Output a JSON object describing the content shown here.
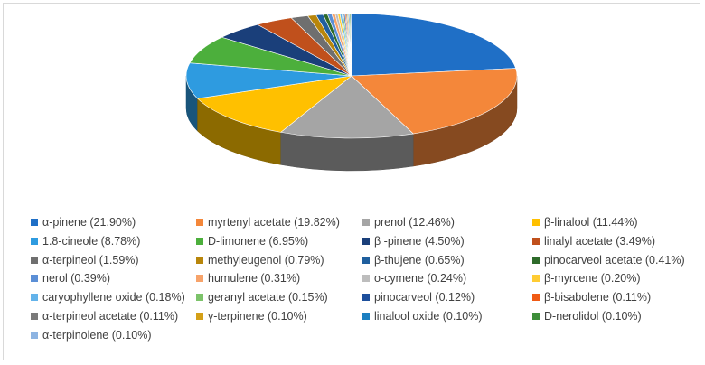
{
  "chart_data": {
    "type": "pie",
    "title": "",
    "legend_position": "bottom",
    "series": [
      {
        "name": "α-pinene",
        "value": 21.9,
        "label": "α-pinene (21.90%)",
        "color": "#1f6fc6"
      },
      {
        "name": "myrtenyl acetate",
        "value": 19.82,
        "label": "myrtenyl acetate (19.82%)",
        "color": "#f4873a"
      },
      {
        "name": "prenol",
        "value": 12.46,
        "label": "prenol (12.46%)",
        "color": "#a5a5a5"
      },
      {
        "name": "β-linalool",
        "value": 11.44,
        "label": "β-linalool (11.44%)",
        "color": "#ffc000"
      },
      {
        "name": "1.8-cineole",
        "value": 8.78,
        "label": "1.8-cineole (8.78%)",
        "color": "#2e9be0"
      },
      {
        "name": "D-limonene",
        "value": 6.95,
        "label": "D-limonene (6.95%)",
        "color": "#4caf3c"
      },
      {
        "name": "β -pinene",
        "value": 4.5,
        "label": "β -pinene (4.50%)",
        "color": "#1a3f7a"
      },
      {
        "name": "linalyl acetate",
        "value": 3.49,
        "label": "linalyl acetate (3.49%)",
        "color": "#c0501c"
      },
      {
        "name": "α-terpineol",
        "value": 1.59,
        "label": "α-terpineol (1.59%)",
        "color": "#6f6f6f"
      },
      {
        "name": "methyleugenol",
        "value": 0.79,
        "label": "methyleugenol (0.79%)",
        "color": "#b8860b"
      },
      {
        "name": "β-thujene",
        "value": 0.65,
        "label": "β-thujene (0.65%)",
        "color": "#1f5f9e"
      },
      {
        "name": "pinocarveol acetate",
        "value": 0.41,
        "label": "pinocarveol acetate (0.41%)",
        "color": "#2e6b2a"
      },
      {
        "name": "nerol",
        "value": 0.39,
        "label": "nerol (0.39%)",
        "color": "#5b8fd6"
      },
      {
        "name": "humulene",
        "value": 0.31,
        "label": "humulene (0.31%)",
        "color": "#f7a36a"
      },
      {
        "name": "o-cymene",
        "value": 0.24,
        "label": "o-cymene (0.24%)",
        "color": "#bdbdbd"
      },
      {
        "name": "β-myrcene",
        "value": 0.2,
        "label": "β-myrcene (0.20%)",
        "color": "#ffcc33"
      },
      {
        "name": "caryophyllene oxide",
        "value": 0.18,
        "label": "caryophyllene oxide (0.18%)",
        "color": "#63b3ea"
      },
      {
        "name": "geranyl acetate",
        "value": 0.15,
        "label": "geranyl acetate (0.15%)",
        "color": "#7cc36a"
      },
      {
        "name": "pinocarveol",
        "value": 0.12,
        "label": "pinocarveol (0.12%)",
        "color": "#1d4f9c"
      },
      {
        "name": "β-bisabolene",
        "value": 0.11,
        "label": "β-bisabolene (0.11%)",
        "color": "#f05a14"
      },
      {
        "name": "α-terpineol acetate",
        "value": 0.11,
        "label": "α-terpineol acetate (0.11%)",
        "color": "#7a7a7a"
      },
      {
        "name": "γ-terpinene",
        "value": 0.1,
        "label": "γ-terpinene (0.10%)",
        "color": "#d4a017"
      },
      {
        "name": "linalool oxide",
        "value": 0.1,
        "label": "linalool oxide (0.10%)",
        "color": "#1b7fc1"
      },
      {
        "name": "D-nerolidol",
        "value": 0.1,
        "label": "D-nerolidol (0.10%)",
        "color": "#3e8e3a"
      },
      {
        "name": "α-terpinolene",
        "value": 0.1,
        "label": "α-terpinolene (0.10%)",
        "color": "#8db4e2"
      }
    ]
  }
}
